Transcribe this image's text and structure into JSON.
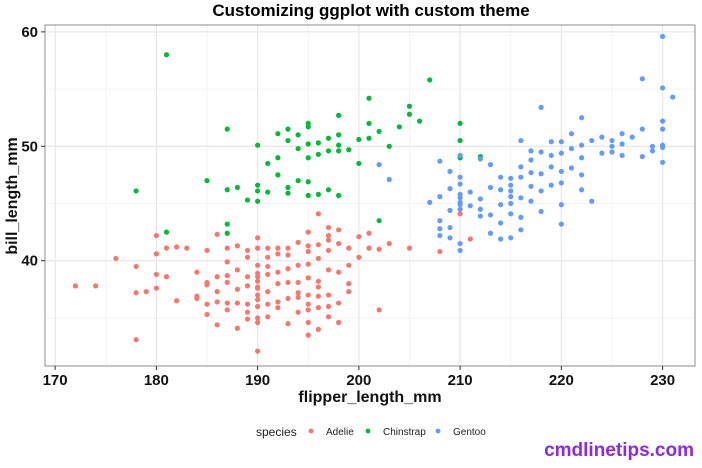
{
  "chart_data": {
    "type": "scatter",
    "title": "Customizing ggplot with custom theme",
    "xlabel": "flipper_length_mm",
    "ylabel": "bill_length_mm",
    "xlim": [
      169,
      233.2
    ],
    "ylim": [
      30.8,
      60.6
    ],
    "x_ticks": [
      170,
      180,
      190,
      200,
      210,
      220,
      230
    ],
    "y_ticks": [
      40,
      50,
      60
    ],
    "grid": true,
    "legend": {
      "title": "species",
      "position": "bottom"
    },
    "series": [
      {
        "name": "Adelie",
        "color": "#F8766D",
        "points": [
          [
            172,
            37.8
          ],
          [
            174,
            37.8
          ],
          [
            176,
            40.2
          ],
          [
            178,
            39.5
          ],
          [
            178,
            37.2
          ],
          [
            178,
            33.1
          ],
          [
            179,
            37.3
          ],
          [
            180,
            42.2
          ],
          [
            180,
            40.6
          ],
          [
            180,
            38.8
          ],
          [
            180,
            37.6
          ],
          [
            181,
            41.1
          ],
          [
            181,
            38.6
          ],
          [
            182,
            41.2
          ],
          [
            182,
            36.5
          ],
          [
            183,
            41.1
          ],
          [
            184,
            39.0
          ],
          [
            184,
            36.7
          ],
          [
            184,
            36.9
          ],
          [
            185,
            40.9
          ],
          [
            185,
            38.1
          ],
          [
            185,
            37.9
          ],
          [
            185,
            36.2
          ],
          [
            185,
            35.3
          ],
          [
            186,
            42.3
          ],
          [
            186,
            38.6
          ],
          [
            186,
            37.3
          ],
          [
            186,
            36.4
          ],
          [
            186,
            34.4
          ],
          [
            187,
            41.1
          ],
          [
            187,
            39.9
          ],
          [
            187,
            38.1
          ],
          [
            187,
            38.7
          ],
          [
            187,
            36.3
          ],
          [
            187,
            35.7
          ],
          [
            188,
            41.3
          ],
          [
            188,
            39.2
          ],
          [
            188,
            37.5
          ],
          [
            188,
            36.3
          ],
          [
            188,
            34.1
          ],
          [
            189,
            40.9
          ],
          [
            189,
            40.3
          ],
          [
            189,
            37.8
          ],
          [
            189,
            36.2
          ],
          [
            189,
            35.5
          ],
          [
            189,
            34.9
          ],
          [
            189,
            38.6
          ],
          [
            190,
            42.0
          ],
          [
            190,
            41.1
          ],
          [
            190,
            39.6
          ],
          [
            190,
            38.9
          ],
          [
            190,
            38.6
          ],
          [
            190,
            38.2
          ],
          [
            190,
            37.7
          ],
          [
            190,
            37.6
          ],
          [
            190,
            37.0
          ],
          [
            190,
            36.6
          ],
          [
            190,
            36.0
          ],
          [
            190,
            35.0
          ],
          [
            190,
            34.6
          ],
          [
            190,
            32.1
          ],
          [
            191,
            41.1
          ],
          [
            191,
            40.3
          ],
          [
            191,
            39.5
          ],
          [
            191,
            38.8
          ],
          [
            191,
            37.3
          ],
          [
            191,
            36.2
          ],
          [
            191,
            35.1
          ],
          [
            192,
            41.1
          ],
          [
            192,
            40.6
          ],
          [
            192,
            39.0
          ],
          [
            192,
            38.0
          ],
          [
            192,
            36.4
          ],
          [
            192,
            35.9
          ],
          [
            193,
            41.1
          ],
          [
            193,
            40.5
          ],
          [
            193,
            39.3
          ],
          [
            193,
            38.1
          ],
          [
            193,
            36.7
          ],
          [
            193,
            34.5
          ],
          [
            194,
            41.6
          ],
          [
            194,
            39.6
          ],
          [
            194,
            38.1
          ],
          [
            194,
            37.2
          ],
          [
            194,
            36.8
          ],
          [
            194,
            35.5
          ],
          [
            195,
            42.5
          ],
          [
            195,
            41.3
          ],
          [
            195,
            40.8
          ],
          [
            195,
            39.7
          ],
          [
            195,
            38.5
          ],
          [
            195,
            37.0
          ],
          [
            195,
            36.2
          ],
          [
            195,
            35.7
          ],
          [
            195,
            34.6
          ],
          [
            195,
            33.5
          ],
          [
            196,
            44.1
          ],
          [
            196,
            41.4
          ],
          [
            196,
            40.2
          ],
          [
            196,
            38.2
          ],
          [
            196,
            37.7
          ],
          [
            196,
            36.9
          ],
          [
            196,
            35.9
          ],
          [
            196,
            34.0
          ],
          [
            197,
            42.9
          ],
          [
            197,
            42.2
          ],
          [
            197,
            41.8
          ],
          [
            197,
            40.9
          ],
          [
            197,
            39.2
          ],
          [
            197,
            37.0
          ],
          [
            197,
            36.0
          ],
          [
            197,
            35.1
          ],
          [
            198,
            42.7
          ],
          [
            198,
            41.5
          ],
          [
            198,
            39.0
          ],
          [
            198,
            36.3
          ],
          [
            198,
            34.6
          ],
          [
            199,
            41.1
          ],
          [
            199,
            39.6
          ],
          [
            199,
            38.0
          ],
          [
            199,
            37.3
          ],
          [
            200,
            42.1
          ],
          [
            200,
            40.3
          ],
          [
            201,
            42.4
          ],
          [
            201,
            41.1
          ],
          [
            202,
            41.0
          ],
          [
            202,
            35.7
          ],
          [
            203,
            41.5
          ],
          [
            205,
            41.1
          ],
          [
            208,
            40.8
          ],
          [
            210,
            44.1
          ],
          [
            211,
            41.9
          ]
        ]
      },
      {
        "name": "Chinstrap",
        "color": "#00BA38",
        "points": [
          [
            178,
            46.1
          ],
          [
            181,
            58.0
          ],
          [
            181,
            42.5
          ],
          [
            185,
            47.0
          ],
          [
            187,
            51.5
          ],
          [
            187,
            46.2
          ],
          [
            187,
            43.2
          ],
          [
            187,
            42.4
          ],
          [
            188,
            46.4
          ],
          [
            189,
            45.3
          ],
          [
            190,
            50.1
          ],
          [
            190,
            46.6
          ],
          [
            190,
            46.1
          ],
          [
            190,
            45.2
          ],
          [
            191,
            48.5
          ],
          [
            191,
            46.0
          ],
          [
            192,
            51.1
          ],
          [
            192,
            47.5
          ],
          [
            192,
            49.0
          ],
          [
            193,
            50.5
          ],
          [
            193,
            51.5
          ],
          [
            193,
            46.4
          ],
          [
            193,
            45.9
          ],
          [
            194,
            51.0
          ],
          [
            194,
            49.8
          ],
          [
            194,
            47.0
          ],
          [
            195,
            51.7
          ],
          [
            195,
            52.0
          ],
          [
            195,
            50.2
          ],
          [
            195,
            49.0
          ],
          [
            195,
            46.9
          ],
          [
            195,
            45.7
          ],
          [
            196,
            50.3
          ],
          [
            196,
            49.3
          ],
          [
            196,
            45.8
          ],
          [
            197,
            50.7
          ],
          [
            197,
            49.6
          ],
          [
            197,
            46.2
          ],
          [
            198,
            52.7
          ],
          [
            198,
            51.0
          ],
          [
            198,
            50.1
          ],
          [
            198,
            49.6
          ],
          [
            198,
            45.7
          ],
          [
            199,
            49.7
          ],
          [
            200,
            50.6
          ],
          [
            200,
            48.5
          ],
          [
            201,
            54.2
          ],
          [
            201,
            52.0
          ],
          [
            201,
            50.7
          ],
          [
            202,
            51.3
          ],
          [
            202,
            43.5
          ],
          [
            203,
            50.0
          ],
          [
            204,
            51.7
          ],
          [
            205,
            53.5
          ],
          [
            205,
            52.8
          ],
          [
            206,
            52.2
          ],
          [
            207,
            55.8
          ],
          [
            210,
            52.0
          ],
          [
            210,
            50.5
          ],
          [
            210,
            49.0
          ],
          [
            212,
            49.1
          ]
        ]
      },
      {
        "name": "Gentoo",
        "color": "#619CFF",
        "points": [
          [
            202,
            48.4
          ],
          [
            203,
            47.1
          ],
          [
            207,
            45.1
          ],
          [
            208,
            48.7
          ],
          [
            208,
            45.6
          ],
          [
            208,
            43.5
          ],
          [
            208,
            42.8
          ],
          [
            208,
            42.2
          ],
          [
            209,
            47.8
          ],
          [
            209,
            46.3
          ],
          [
            209,
            44.4
          ],
          [
            209,
            42.9
          ],
          [
            209,
            42.0
          ],
          [
            210,
            49.2
          ],
          [
            210,
            47.3
          ],
          [
            210,
            46.7
          ],
          [
            210,
            45.8
          ],
          [
            210,
            45.5
          ],
          [
            210,
            45.1
          ],
          [
            210,
            44.9
          ],
          [
            210,
            44.5
          ],
          [
            210,
            41.5
          ],
          [
            210,
            40.9
          ],
          [
            211,
            46.0
          ],
          [
            211,
            44.8
          ],
          [
            212,
            48.9
          ],
          [
            212,
            45.4
          ],
          [
            212,
            44.5
          ],
          [
            212,
            43.9
          ],
          [
            213,
            48.4
          ],
          [
            213,
            46.4
          ],
          [
            213,
            44.0
          ],
          [
            213,
            42.4
          ],
          [
            214,
            47.3
          ],
          [
            214,
            46.2
          ],
          [
            214,
            44.9
          ],
          [
            214,
            43.3
          ],
          [
            214,
            41.9
          ],
          [
            215,
            47.2
          ],
          [
            215,
            46.6
          ],
          [
            215,
            46.1
          ],
          [
            215,
            45.6
          ],
          [
            215,
            45.0
          ],
          [
            215,
            44.1
          ],
          [
            215,
            42.0
          ],
          [
            216,
            50.5
          ],
          [
            216,
            48.2
          ],
          [
            216,
            47.3
          ],
          [
            216,
            45.5
          ],
          [
            216,
            43.8
          ],
          [
            216,
            42.7
          ],
          [
            217,
            49.6
          ],
          [
            217,
            48.8
          ],
          [
            217,
            47.7
          ],
          [
            217,
            46.5
          ],
          [
            217,
            45.2
          ],
          [
            218,
            53.4
          ],
          [
            218,
            49.5
          ],
          [
            218,
            47.6
          ],
          [
            218,
            46.1
          ],
          [
            218,
            44.3
          ],
          [
            219,
            50.4
          ],
          [
            219,
            49.2
          ],
          [
            219,
            48.2
          ],
          [
            219,
            46.6
          ],
          [
            220,
            50.4
          ],
          [
            220,
            49.4
          ],
          [
            220,
            47.8
          ],
          [
            220,
            46.8
          ],
          [
            220,
            44.9
          ],
          [
            220,
            43.2
          ],
          [
            221,
            51.1
          ],
          [
            221,
            49.8
          ],
          [
            221,
            48.1
          ],
          [
            222,
            52.5
          ],
          [
            222,
            50.1
          ],
          [
            222,
            49.0
          ],
          [
            222,
            47.5
          ],
          [
            222,
            46.2
          ],
          [
            223,
            50.5
          ],
          [
            223,
            45.2
          ],
          [
            224,
            50.8
          ],
          [
            224,
            49.4
          ],
          [
            225,
            50.5
          ],
          [
            225,
            50.0
          ],
          [
            225,
            49.5
          ],
          [
            226,
            51.1
          ],
          [
            226,
            50.2
          ],
          [
            226,
            49.2
          ],
          [
            227,
            50.8
          ],
          [
            228,
            55.9
          ],
          [
            228,
            51.5
          ],
          [
            228,
            49.1
          ],
          [
            229,
            50.0
          ],
          [
            229,
            49.6
          ],
          [
            230,
            59.6
          ],
          [
            230,
            55.1
          ],
          [
            230,
            52.2
          ],
          [
            230,
            51.5
          ],
          [
            230,
            50.1
          ],
          [
            230,
            49.9
          ],
          [
            230,
            48.6
          ],
          [
            231,
            54.3
          ]
        ]
      }
    ]
  },
  "legend": {
    "title": "species",
    "items": [
      {
        "label": "Adelie",
        "color": "#F8766D"
      },
      {
        "label": "Chinstrap",
        "color": "#00BA38"
      },
      {
        "label": "Gentoo",
        "color": "#619CFF"
      }
    ]
  },
  "watermark": "cmdlinetips.com",
  "theme": {
    "panel_border": "#8c8c8c",
    "grid_major": "#e8e8e8",
    "grid_minor": "#f3f3f3",
    "watermark_color": "#8a2be2"
  }
}
